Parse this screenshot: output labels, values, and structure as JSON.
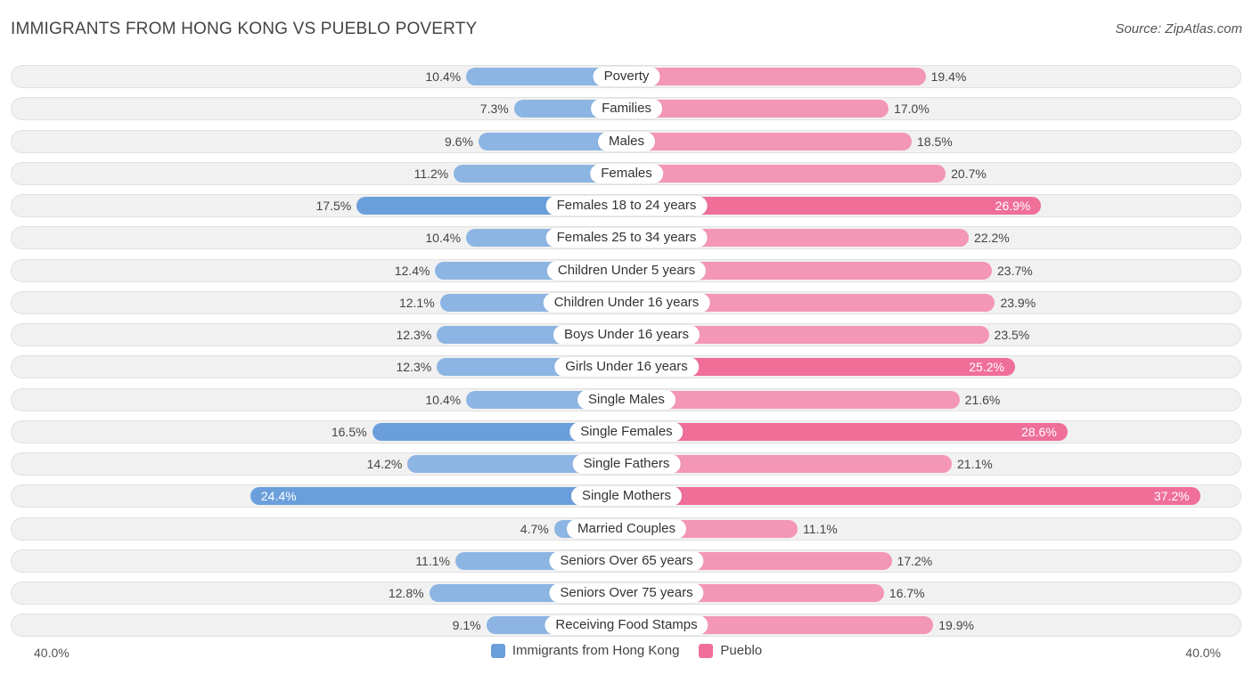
{
  "chart_data": {
    "type": "bar",
    "orientation": "horizontal-diverging",
    "title": "IMMIGRANTS FROM HONG KONG VS PUEBLO POVERTY",
    "source": "Source: ZipAtlas.com",
    "categories": [
      "Poverty",
      "Families",
      "Males",
      "Females",
      "Females 18 to 24 years",
      "Females 25 to 34 years",
      "Children Under 5 years",
      "Children Under 16 years",
      "Boys Under 16 years",
      "Girls Under 16 years",
      "Single Males",
      "Single Females",
      "Single Fathers",
      "Single Mothers",
      "Married Couples",
      "Seniors Over 65 years",
      "Seniors Over 75 years",
      "Receiving Food Stamps"
    ],
    "series": [
      {
        "name": "Immigrants from Hong Kong",
        "color": "#8db5e3",
        "values": [
          10.4,
          7.3,
          9.6,
          11.2,
          17.5,
          10.4,
          12.4,
          12.1,
          12.3,
          12.3,
          10.4,
          16.5,
          14.2,
          24.4,
          4.7,
          11.1,
          12.8,
          9.1
        ]
      },
      {
        "name": "Pueblo",
        "color": "#f496b5",
        "values": [
          19.4,
          17.0,
          18.5,
          20.7,
          26.9,
          22.2,
          23.7,
          23.9,
          23.5,
          25.2,
          21.6,
          28.6,
          21.1,
          37.2,
          11.1,
          17.2,
          16.7,
          19.9
        ]
      }
    ],
    "xlim": [
      0,
      40.0
    ],
    "axis_left_label": "40.0%",
    "axis_right_label": "40.0%",
    "unit": "%"
  }
}
